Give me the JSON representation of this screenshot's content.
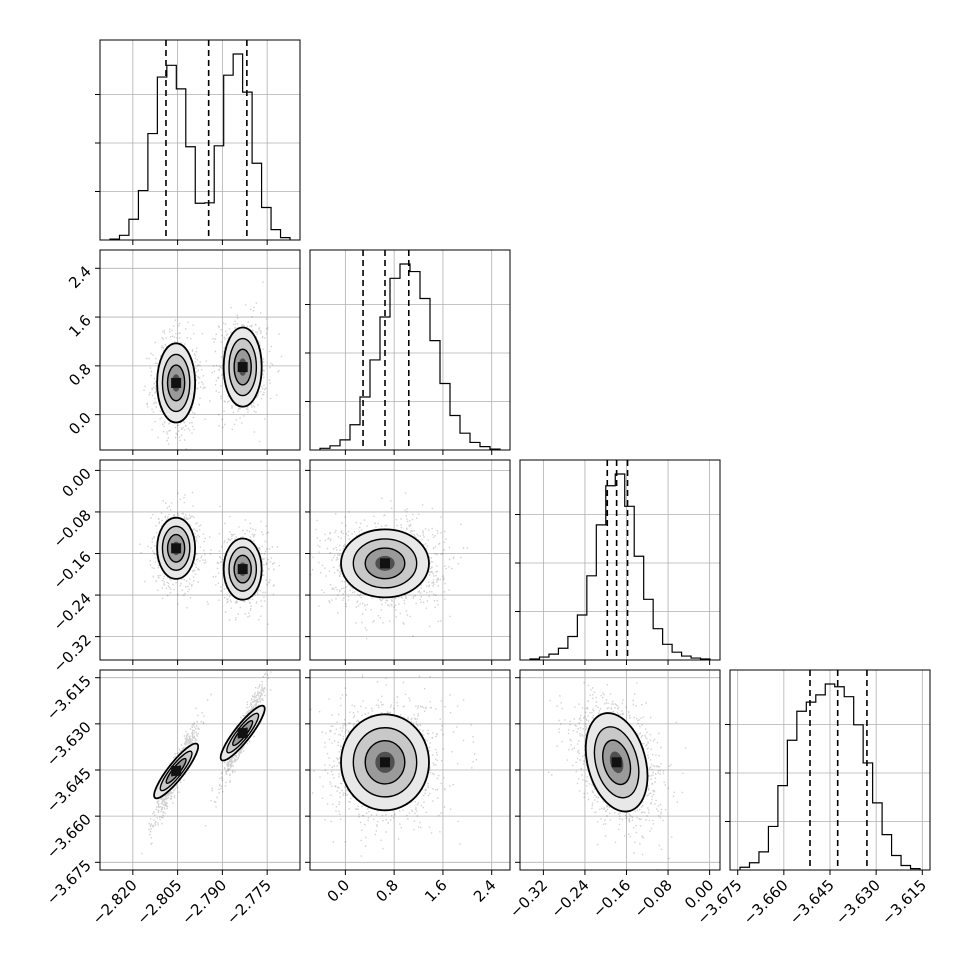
{
  "chart_data": {
    "type": "corner",
    "grid": true,
    "colors": {
      "line": "#000000",
      "grid": "#b0b0b0",
      "scatter": "#000000"
    },
    "axes": [
      {
        "index": 0,
        "range": [
          -2.831,
          -2.764
        ],
        "ticks": [
          -2.82,
          -2.805,
          -2.79,
          -2.775
        ],
        "tick_labels": [
          "−2.820",
          "−2.805",
          "−2.790",
          "−2.775"
        ],
        "quantiles": [
          -2.8089,
          -2.7946,
          -2.7818
        ],
        "blobs": [
          {
            "cx": -2.8055,
            "cy_ax1": 0.52,
            "cy_ax2": -0.15,
            "cy_ax3": -3.6453,
            "weight": 0.5
          },
          {
            "cx": -2.7832,
            "cy_ax1": 0.78,
            "cy_ax2": -0.19,
            "cy_ax3": -3.633,
            "weight": 0.5
          }
        ]
      },
      {
        "index": 1,
        "range": [
          -0.58,
          2.7
        ],
        "ticks": [
          0.0,
          0.8,
          1.6,
          2.4
        ],
        "tick_labels": [
          "0.0",
          "0.8",
          "1.6",
          "2.4"
        ],
        "quantiles": [
          0.29,
          0.65,
          1.04
        ]
      },
      {
        "index": 2,
        "range": [
          -0.365,
          0.02
        ],
        "ticks": [
          -0.32,
          -0.24,
          -0.16,
          -0.08,
          0.0
        ],
        "tick_labels": [
          "−0.32",
          "−0.24",
          "−0.16",
          "−0.08",
          "0.00"
        ],
        "quantiles": [
          -0.197,
          -0.179,
          -0.158
        ]
      },
      {
        "index": 3,
        "range": [
          -3.6775,
          -3.6125
        ],
        "ticks": [
          -3.675,
          -3.66,
          -3.645,
          -3.63,
          -3.615
        ],
        "tick_labels": [
          "−3.675",
          "−3.660",
          "−3.645",
          "−3.630",
          "−3.615"
        ],
        "quantiles": [
          -3.6515,
          -3.6425,
          -3.633
        ]
      }
    ],
    "histograms": [
      {
        "axis": 0,
        "counts": [
          0.2,
          1.0,
          4.4,
          10.5,
          22.6,
          34.6,
          37.1,
          32.1,
          19.8,
          7.8,
          7.9,
          20.0,
          35.0,
          39.5,
          31.4,
          16.3,
          6.9,
          2.2,
          0.5
        ]
      },
      {
        "axis": 1,
        "counts": [
          0.2,
          0.5,
          1.2,
          3.0,
          6.3,
          10.7,
          15.8,
          20.4,
          22.1,
          21.2,
          18.0,
          13.0,
          7.9,
          4.1,
          2.0,
          0.9,
          0.4,
          0.1
        ]
      },
      {
        "axis": 2,
        "counts": [
          0.1,
          0.3,
          0.6,
          1.2,
          2.4,
          4.6,
          8.6,
          13.8,
          17.8,
          19.0,
          15.7,
          10.6,
          6.2,
          3.2,
          1.6,
          0.8,
          0.4,
          0.2,
          0.1
        ]
      },
      {
        "axis": 3,
        "counts": [
          0.3,
          0.8,
          2.0,
          4.8,
          9.3,
          14.3,
          17.5,
          18.5,
          19.3,
          20.5,
          20.2,
          19.1,
          16.0,
          11.8,
          7.4,
          3.9,
          1.6,
          0.5,
          0.15
        ]
      }
    ],
    "pairs": [
      {
        "row": 1,
        "col": 0,
        "correlation": 0.0
      },
      {
        "row": 2,
        "col": 0,
        "correlation": 0.0
      },
      {
        "row": 3,
        "col": 0,
        "correlation": 0.95
      },
      {
        "row": 2,
        "col": 1,
        "correlation": 0.0
      },
      {
        "row": 3,
        "col": 1,
        "correlation": 0.05
      },
      {
        "row": 3,
        "col": 2,
        "correlation": -0.35
      }
    ]
  }
}
